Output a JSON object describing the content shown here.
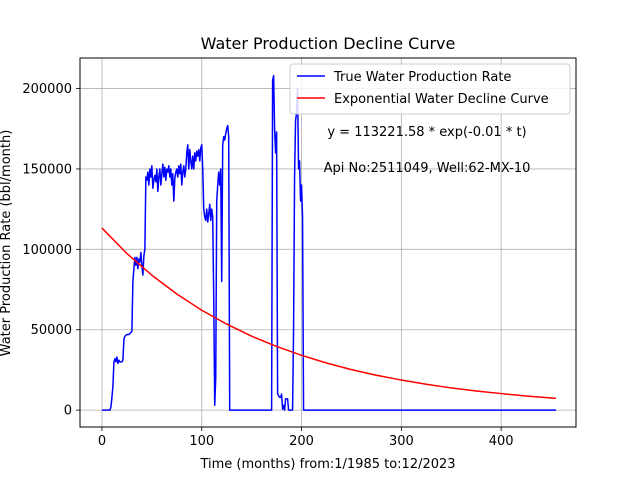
{
  "chart_data": {
    "type": "line",
    "title": "Water Production Decline Curve",
    "xlabel": "Time (months) from:1/1985 to:12/2023",
    "ylabel": "Water Production Rate (bbl/month)",
    "xlim": [
      -22,
      475
    ],
    "ylim": [
      -10500,
      219000
    ],
    "xticks": [
      0,
      100,
      200,
      300,
      400
    ],
    "yticks": [
      0,
      50000,
      100000,
      150000,
      200000
    ],
    "grid": true,
    "legend_position": "top-right",
    "annotations": [
      "y = 113221.58 * exp(-0.01 * t)",
      "Api No:2511049, Well:62-MX-10"
    ],
    "series": [
      {
        "name": "True Water Production Rate",
        "color": "#0000ff",
        "points": [
          [
            0,
            0
          ],
          [
            8,
            0
          ],
          [
            9,
            2000
          ],
          [
            10,
            8000
          ],
          [
            11,
            15000
          ],
          [
            12,
            30000
          ],
          [
            13,
            32000
          ],
          [
            14,
            30000
          ],
          [
            15,
            33000
          ],
          [
            16,
            29000
          ],
          [
            17,
            31000
          ],
          [
            18,
            30000
          ],
          [
            20,
            30000
          ],
          [
            21,
            31000
          ],
          [
            22,
            44000
          ],
          [
            23,
            46000
          ],
          [
            25,
            47000
          ],
          [
            27,
            47000
          ],
          [
            30,
            49000
          ],
          [
            31,
            80000
          ],
          [
            32,
            88000
          ],
          [
            33,
            95000
          ],
          [
            34,
            90000
          ],
          [
            35,
            95000
          ],
          [
            36,
            88000
          ],
          [
            37,
            94000
          ],
          [
            38,
            92000
          ],
          [
            39,
            98000
          ],
          [
            40,
            90000
          ],
          [
            41,
            84000
          ],
          [
            42,
            96000
          ],
          [
            43,
            100000
          ],
          [
            44,
            145000
          ],
          [
            45,
            143000
          ],
          [
            46,
            148000
          ],
          [
            47,
            140000
          ],
          [
            48,
            150000
          ],
          [
            49,
            145000
          ],
          [
            50,
            152000
          ],
          [
            51,
            138000
          ],
          [
            52,
            143000
          ],
          [
            53,
            146000
          ],
          [
            54,
            142000
          ],
          [
            55,
            150000
          ],
          [
            56,
            136000
          ],
          [
            57,
            145000
          ],
          [
            58,
            150000
          ],
          [
            59,
            140000
          ],
          [
            60,
            147000
          ],
          [
            61,
            153000
          ],
          [
            62,
            145000
          ],
          [
            63,
            151000
          ],
          [
            64,
            143000
          ],
          [
            65,
            150000
          ],
          [
            66,
            148000
          ],
          [
            67,
            152000
          ],
          [
            68,
            145000
          ],
          [
            69,
            150000
          ],
          [
            70,
            140000
          ],
          [
            71,
            147000
          ],
          [
            72,
            130000
          ],
          [
            73,
            144000
          ],
          [
            74,
            148000
          ],
          [
            75,
            150000
          ],
          [
            76,
            145000
          ],
          [
            77,
            152000
          ],
          [
            78,
            147000
          ],
          [
            79,
            153000
          ],
          [
            80,
            140000
          ],
          [
            81,
            148000
          ],
          [
            82,
            152000
          ],
          [
            83,
            145000
          ],
          [
            84,
            150000
          ],
          [
            85,
            160000
          ],
          [
            86,
            165000
          ],
          [
            87,
            150000
          ],
          [
            88,
            162000
          ],
          [
            89,
            155000
          ],
          [
            90,
            150000
          ],
          [
            91,
            158000
          ],
          [
            92,
            150000
          ],
          [
            93,
            160000
          ],
          [
            94,
            155000
          ],
          [
            95,
            161000
          ],
          [
            96,
            158000
          ],
          [
            97,
            162000
          ],
          [
            98,
            155000
          ],
          [
            99,
            163000
          ],
          [
            100,
            165000
          ],
          [
            101,
            150000
          ],
          [
            102,
            125000
          ],
          [
            103,
            120000
          ],
          [
            104,
            118000
          ],
          [
            105,
            125000
          ],
          [
            106,
            117000
          ],
          [
            107,
            122000
          ],
          [
            108,
            128000
          ],
          [
            109,
            118000
          ],
          [
            110,
            125000
          ],
          [
            111,
            120000
          ],
          [
            112,
            70000
          ],
          [
            113,
            3000
          ],
          [
            114,
            20000
          ],
          [
            115,
            130000
          ],
          [
            116,
            140000
          ],
          [
            117,
            148000
          ],
          [
            118,
            140000
          ],
          [
            119,
            150000
          ],
          [
            120,
            80000
          ],
          [
            121,
            165000
          ],
          [
            122,
            170000
          ],
          [
            123,
            168000
          ],
          [
            124,
            172000
          ],
          [
            125,
            175000
          ],
          [
            126,
            177000
          ],
          [
            127,
            170000
          ],
          [
            128,
            0
          ],
          [
            170,
            0
          ],
          [
            171,
            205000
          ],
          [
            172,
            208000
          ],
          [
            173,
            175000
          ],
          [
            174,
            160000
          ],
          [
            175,
            173000
          ],
          [
            176,
            10000
          ],
          [
            178,
            8000
          ],
          [
            179,
            8000
          ],
          [
            180,
            10000
          ],
          [
            181,
            500
          ],
          [
            182,
            3000
          ],
          [
            183,
            0
          ],
          [
            184,
            7000
          ],
          [
            185,
            7000
          ],
          [
            186,
            7000
          ],
          [
            187,
            0
          ],
          [
            191,
            0
          ],
          [
            192,
            50000
          ],
          [
            193,
            145000
          ],
          [
            194,
            180000
          ],
          [
            195,
            185000
          ],
          [
            196,
            200000
          ],
          [
            197,
            150000
          ],
          [
            198,
            155000
          ],
          [
            199,
            130000
          ],
          [
            200,
            140000
          ],
          [
            201,
            120000
          ],
          [
            202,
            0
          ],
          [
            455,
            0
          ]
        ]
      },
      {
        "name": "Exponential Water Decline Curve",
        "color": "#ff0000",
        "function": "y = 113221.58 * exp(-0.006 * t)",
        "points": [
          [
            0,
            113221.58
          ],
          [
            25,
            97400
          ],
          [
            50,
            83900
          ],
          [
            75,
            72200
          ],
          [
            100,
            62100
          ],
          [
            125,
            53500
          ],
          [
            150,
            46000
          ],
          [
            175,
            39600
          ],
          [
            200,
            34100
          ],
          [
            225,
            29300
          ],
          [
            250,
            25200
          ],
          [
            275,
            21700
          ],
          [
            300,
            18700
          ],
          [
            325,
            16100
          ],
          [
            350,
            13800
          ],
          [
            375,
            11900
          ],
          [
            400,
            10300
          ],
          [
            425,
            8800
          ],
          [
            455,
            7300
          ]
        ]
      }
    ]
  }
}
